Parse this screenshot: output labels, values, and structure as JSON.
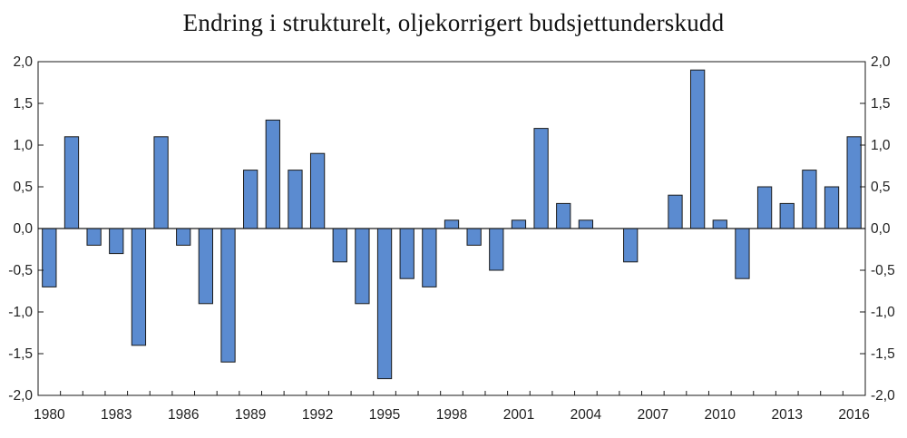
{
  "chart_data": {
    "type": "bar",
    "title": "Endring i strukturelt, oljekorrigert budsjettunderskudd",
    "xlabel": "",
    "ylabel": "",
    "categories": [
      "1980",
      "1981",
      "1982",
      "1983",
      "1984",
      "1985",
      "1986",
      "1987",
      "1988",
      "1989",
      "1990",
      "1991",
      "1992",
      "1993",
      "1994",
      "1995",
      "1996",
      "1997",
      "1998",
      "1999",
      "2000",
      "2001",
      "2002",
      "2003",
      "2004",
      "2005",
      "2006",
      "2007",
      "2008",
      "2009",
      "2010",
      "2011",
      "2012",
      "2013",
      "2014",
      "2015",
      "2016"
    ],
    "values": [
      -0.7,
      1.1,
      -0.2,
      -0.3,
      -1.4,
      1.1,
      -0.2,
      -0.9,
      -1.6,
      0.7,
      1.3,
      0.7,
      0.9,
      -0.4,
      -0.9,
      -1.8,
      -0.6,
      -0.7,
      0.1,
      -0.2,
      -0.5,
      0.1,
      1.2,
      0.3,
      0.1,
      0.0,
      -0.4,
      0.0,
      0.4,
      1.9,
      0.1,
      -0.6,
      0.5,
      0.3,
      0.7,
      0.5,
      1.1
    ],
    "x_tick_labels": [
      "1980",
      "1983",
      "1986",
      "1989",
      "1992",
      "1995",
      "1998",
      "2001",
      "2004",
      "2007",
      "2010",
      "2013",
      "2016"
    ],
    "y_ticks": [
      2.0,
      1.5,
      1.0,
      0.5,
      0.0,
      -0.5,
      -1.0,
      -1.5,
      -2.0
    ],
    "y_tick_labels_left": [
      "2,0",
      "1,5",
      "1,0",
      "0,5",
      "0,0",
      "-0,5",
      "-1,0",
      "-1,5",
      "-2,0"
    ],
    "y_tick_labels_right": [
      "2,0",
      "1,5",
      "1,0",
      "0,5",
      "0,0",
      "-0,5",
      "-1,0",
      "-1,5",
      "-2,0"
    ],
    "ylim": [
      -2.0,
      2.0
    ],
    "grid": false,
    "legend": "none",
    "bar_color": "#5b8bd0",
    "bar_edge_color": "#1a1a1a"
  }
}
